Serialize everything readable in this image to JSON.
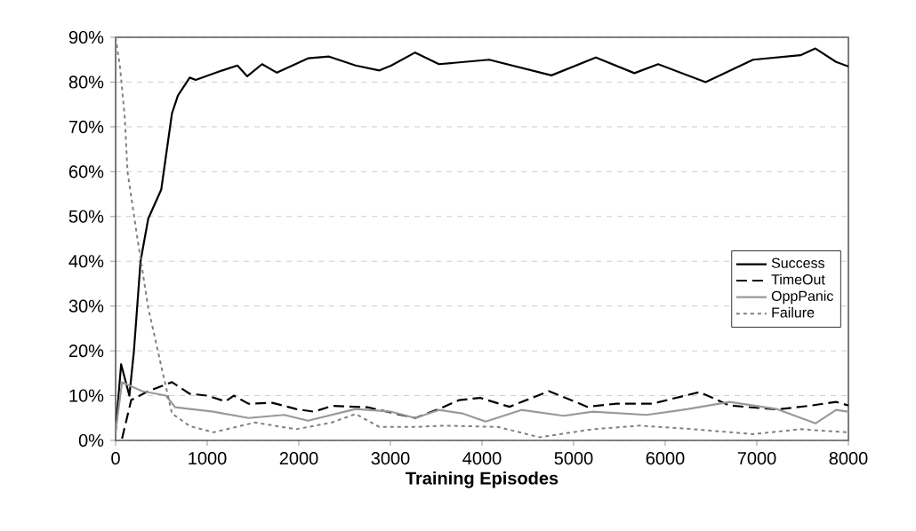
{
  "chart_data": {
    "type": "line",
    "xlabel": "Training Episodes",
    "xlim": [
      0,
      8000
    ],
    "xticks": [
      0,
      1000,
      2000,
      3000,
      4000,
      5000,
      6000,
      7000,
      8000
    ],
    "ylim": [
      0,
      90
    ],
    "yticks": [
      {
        "value": 0,
        "label": "0%"
      },
      {
        "value": 10,
        "label": "10%"
      },
      {
        "value": 20,
        "label": "20%"
      },
      {
        "value": 30,
        "label": "30%"
      },
      {
        "value": 40,
        "label": "40%"
      },
      {
        "value": 50,
        "label": "50%"
      },
      {
        "value": 60,
        "label": "60%"
      },
      {
        "value": 70,
        "label": "70%"
      },
      {
        "value": 80,
        "label": "80%"
      },
      {
        "value": 90,
        "label": "90%"
      }
    ],
    "grid": "y",
    "legend": "right",
    "marker": "none",
    "series": [
      {
        "name": "Success",
        "color": "#000000",
        "line_style": "solid",
        "x": [
          0,
          60,
          150,
          200,
          272,
          356,
          498,
          615,
          680,
          809,
          874,
          1165,
          1330,
          1437,
          1599,
          1761,
          2100,
          2330,
          2620,
          2880,
          3010,
          3270,
          3530,
          4078,
          4758,
          5243,
          5664,
          5923,
          6441,
          6959,
          7477,
          7640,
          7866,
          8000
        ],
        "values": [
          2,
          17,
          10,
          20,
          40,
          49.5,
          56,
          73,
          77,
          81,
          80.5,
          82.6,
          83.7,
          81.3,
          84,
          82.1,
          85.3,
          85.7,
          83.7,
          82.6,
          83.7,
          86.6,
          84,
          85,
          81.5,
          85.5,
          82,
          84,
          80,
          85,
          86,
          87.5,
          84.5,
          83.5
        ]
      },
      {
        "name": "TimeOut",
        "color": "#000000",
        "line_style": "dashed",
        "x": [
          70,
          170,
          356,
          615,
          809,
          1000,
          1200,
          1290,
          1450,
          1710,
          1970,
          2165,
          2360,
          2750,
          3270,
          3530,
          3750,
          3980,
          4300,
          4730,
          5150,
          5470,
          5860,
          6375,
          6700,
          7220,
          7600,
          7866,
          8000
        ],
        "values": [
          0.4,
          9,
          11,
          13,
          10.4,
          10,
          8.7,
          10,
          8.2,
          8.4,
          7,
          6.4,
          7.7,
          7.4,
          5,
          7,
          9,
          9.5,
          7.5,
          11,
          7.5,
          8.2,
          8.2,
          10.8,
          7.8,
          6.9,
          7.8,
          8.6,
          7.8
        ]
      },
      {
        "name": "OppPanic",
        "color": "#999999",
        "line_style": "solid",
        "x": [
          0,
          70,
          290,
          550,
          650,
          1068,
          1450,
          1840,
          2100,
          2620,
          3010,
          3270,
          3530,
          3790,
          4040,
          4430,
          4890,
          5210,
          5795,
          6250,
          6700,
          7220,
          7640,
          7866,
          8000
        ],
        "values": [
          2,
          13,
          11,
          10,
          7.4,
          6.4,
          5,
          5.7,
          4.4,
          7,
          6.4,
          5,
          6.8,
          6,
          4.2,
          6.8,
          5.5,
          6.4,
          5.7,
          7,
          8.6,
          7,
          3.8,
          6.8,
          6.4
        ]
      },
      {
        "name": "Failure",
        "color": "#808080",
        "line_style": "dotted",
        "x": [
          0,
          50,
          100,
          130,
          235,
          356,
          485,
          615,
          809,
          1068,
          1520,
          1970,
          2360,
          2620,
          2880,
          3270,
          3592,
          4175,
          4628,
          5210,
          5728,
          6311,
          6959,
          7477,
          8000
        ],
        "values": [
          90,
          83,
          72,
          60,
          45.5,
          29.6,
          17.8,
          6,
          3.2,
          1.8,
          4,
          2.5,
          4,
          5.9,
          3,
          3,
          3.3,
          3,
          0.7,
          2.5,
          3.3,
          2.5,
          1.4,
          2.5,
          1.8
        ]
      }
    ]
  }
}
